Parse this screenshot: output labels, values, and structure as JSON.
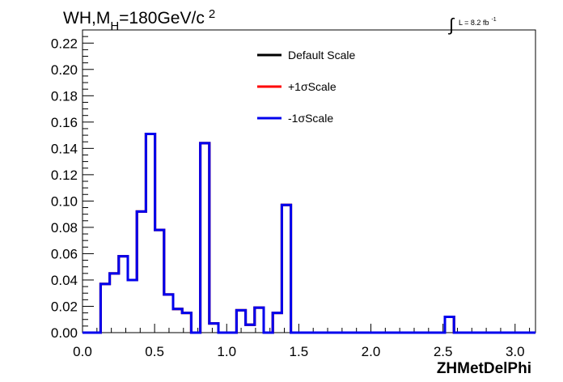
{
  "chart_data": {
    "type": "line",
    "title_parts": {
      "wh": "WH,M",
      "sub": "H",
      "mass": "=180GeV/c",
      "sup": "2"
    },
    "lumi": {
      "sign": "∫",
      "text": "L = 8.2 fb",
      "sup": "-1"
    },
    "xlabel": "ZHMetDelPhi",
    "ylabel": "",
    "xlim": [
      0.0,
      3.1416
    ],
    "ylim": [
      0.0,
      0.23
    ],
    "x_ticks": [
      "0.0",
      "0.5",
      "1.0",
      "1.5",
      "2.0",
      "2.5",
      "3.0"
    ],
    "y_ticks": [
      "0.00",
      "0.02",
      "0.04",
      "0.06",
      "0.08",
      "0.10",
      "0.12",
      "0.14",
      "0.16",
      "0.18",
      "0.20",
      "0.22"
    ],
    "grid": false,
    "legend_position": "top-center",
    "bin_edges": [
      0.0,
      0.1257,
      0.1885,
      0.2513,
      0.3142,
      0.377,
      0.4398,
      0.5027,
      0.5655,
      0.6283,
      0.6912,
      0.754,
      0.8168,
      0.8796,
      0.9425,
      1.0053,
      1.0681,
      1.131,
      1.1938,
      1.2566,
      1.3195,
      1.3823,
      1.4451,
      1.508,
      2.5133,
      2.5761,
      3.1416
    ],
    "series": [
      {
        "name": "Default Scale",
        "color": "#000000",
        "values": [
          0.0,
          0.037,
          0.045,
          0.058,
          0.04,
          0.092,
          0.151,
          0.078,
          0.029,
          0.018,
          0.015,
          0.0,
          0.144,
          0.007,
          0.0,
          0.0,
          0.017,
          0.006,
          0.019,
          0.0,
          0.015,
          0.097,
          0.0,
          0.0,
          0.012,
          0.0
        ]
      },
      {
        "name": "+1σScale",
        "color": "#ff0000",
        "values": [
          0.0,
          0.037,
          0.045,
          0.058,
          0.04,
          0.092,
          0.151,
          0.078,
          0.029,
          0.018,
          0.015,
          0.0,
          0.144,
          0.007,
          0.0,
          0.0,
          0.017,
          0.006,
          0.019,
          0.0,
          0.015,
          0.097,
          0.0,
          0.0,
          0.012,
          0.0
        ]
      },
      {
        "name": "-1σScale",
        "color": "#0000ee",
        "values": [
          0.0,
          0.037,
          0.045,
          0.058,
          0.04,
          0.092,
          0.151,
          0.078,
          0.029,
          0.018,
          0.015,
          0.0,
          0.144,
          0.007,
          0.0,
          0.0,
          0.017,
          0.006,
          0.019,
          0.0,
          0.015,
          0.097,
          0.0,
          0.0,
          0.012,
          0.0
        ]
      }
    ]
  }
}
